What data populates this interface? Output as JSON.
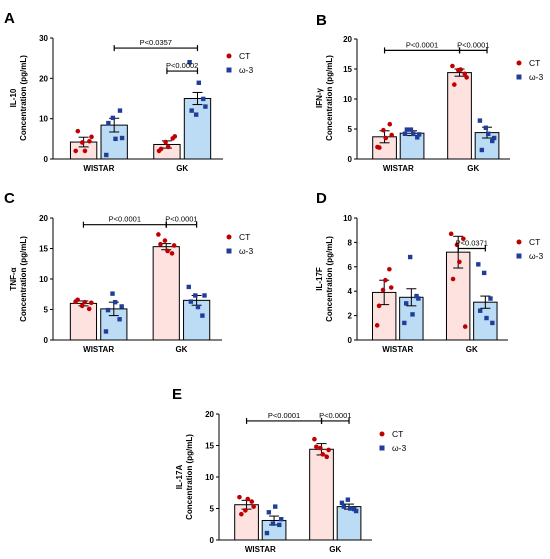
{
  "figure": {
    "categories": [
      "WISTAR",
      "GK"
    ],
    "legend": [
      {
        "label": "CT",
        "color": "#c00000",
        "bar_fill": "#fde2e0",
        "marker": "circle"
      },
      {
        "label": "ω-3",
        "color": "#1f3d99",
        "bar_fill": "#bcdcf5",
        "marker": "square"
      }
    ]
  },
  "chart_data": [
    {
      "panel": "A",
      "type": "bar",
      "ylabel": [
        "IL-10",
        "Concentration (pg/mL)"
      ],
      "ylim": [
        0,
        30
      ],
      "yticks": [
        0,
        10,
        20,
        30
      ],
      "categories": [
        "WISTAR",
        "GK"
      ],
      "series": [
        {
          "name": "CT",
          "values": [
            4.2,
            3.6
          ],
          "sem": [
            1.2,
            0.9
          ],
          "points": [
            [
              2.0,
              4.1,
              4.4,
              6.9,
              2.0,
              5.5
            ],
            [
              2.0,
              4.2,
              5.1,
              2.5,
              3.0,
              5.6
            ]
          ]
        },
        {
          "name": "ω-3",
          "values": [
            8.4,
            15.0
          ],
          "sem": [
            1.7,
            1.5
          ],
          "points": [
            [
              1.0,
              10.2,
              12.0,
              8.9,
              5.0,
              5.2
            ],
            [
              24.0,
              11.0,
              14.9,
              12.0,
              18.9,
              13.0
            ]
          ]
        }
      ],
      "annotations": [
        {
          "text": "P<0.0357",
          "from": [
            0,
            1
          ],
          "to": [
            1,
            1
          ],
          "y": 27.5
        },
        {
          "text": "P<0.0002",
          "from": [
            1,
            0
          ],
          "to": [
            1,
            1
          ],
          "y": 21.8
        }
      ]
    },
    {
      "panel": "B",
      "type": "bar",
      "ylabel": [
        "IFN-γ",
        "Concentration (pg/mL)"
      ],
      "ylim": [
        0,
        20
      ],
      "yticks": [
        0,
        5,
        10,
        15,
        20
      ],
      "categories": [
        "WISTAR",
        "GK"
      ],
      "series": [
        {
          "name": "CT",
          "values": [
            3.7,
            14.4
          ],
          "sem": [
            1.0,
            0.6
          ],
          "points": [
            [
              2.0,
              4.8,
              5.8,
              1.9,
              3.5,
              4.0
            ],
            [
              15.5,
              14.8,
              14.2,
              12.4,
              14.9,
              13.6
            ]
          ]
        },
        {
          "name": "ω-3",
          "values": [
            4.3,
            4.4
          ],
          "sem": [
            0.4,
            0.9
          ],
          "points": [
            [
              4.2,
              4.9,
              3.6,
              4.9,
              4.2,
              4.1
            ],
            [
              6.4,
              5.2,
              3.0,
              1.5,
              4.2,
              3.5
            ]
          ]
        }
      ],
      "annotations": [
        {
          "text": "P<0.0001",
          "from": [
            0,
            0
          ],
          "to": [
            1,
            0
          ],
          "y": 18.1
        },
        {
          "text": "P<0.0001",
          "from": [
            1,
            0
          ],
          "to": [
            1,
            1
          ],
          "y": 18.1
        }
      ]
    },
    {
      "panel": "C",
      "type": "bar",
      "ylabel": [
        "TNF-α",
        "Concentration (pg/mL)"
      ],
      "ylim": [
        0,
        20
      ],
      "yticks": [
        0,
        5,
        10,
        15,
        20
      ],
      "categories": [
        "WISTAR",
        "GK"
      ],
      "series": [
        {
          "name": "CT",
          "values": [
            6.0,
            15.3
          ],
          "sem": [
            0.4,
            0.5
          ],
          "points": [
            [
              6.3,
              5.6,
              5.1,
              6.6,
              6.2,
              6.1
            ],
            [
              17.3,
              16.3,
              14.2,
              15.7,
              14.6,
              15.5
            ]
          ]
        },
        {
          "name": "ω-3",
          "values": [
            5.1,
            6.5
          ],
          "sem": [
            1.1,
            0.8
          ],
          "points": [
            [
              1.4,
              7.6,
              3.4,
              4.9,
              6.2,
              5.5
            ],
            [
              8.7,
              7.3,
              4.0,
              6.3,
              5.4,
              7.3
            ]
          ]
        }
      ],
      "annotations": [
        {
          "text": "P<0.0001",
          "from": [
            0,
            0
          ],
          "to": [
            1,
            0
          ],
          "y": 18.9
        },
        {
          "text": "P<0.0001",
          "from": [
            1,
            0
          ],
          "to": [
            1,
            1
          ],
          "y": 18.9
        }
      ]
    },
    {
      "panel": "D",
      "type": "bar",
      "ylabel": [
        "IL-17F",
        "Concentration (pg/mL)"
      ],
      "ylim": [
        0,
        10
      ],
      "yticks": [
        0,
        2,
        4,
        6,
        8,
        10
      ],
      "categories": [
        "WISTAR",
        "GK"
      ],
      "series": [
        {
          "name": "CT",
          "values": [
            3.9,
            7.2
          ],
          "sem": [
            1.0,
            1.3
          ],
          "points": [
            [
              1.2,
              4.1,
              5.8,
              2.8,
              4.9,
              4.3
            ],
            [
              8.7,
              7.8,
              8.3,
              5.0,
              6.4,
              1.1
            ]
          ]
        },
        {
          "name": "ω-3",
          "values": [
            3.5,
            3.1
          ],
          "sem": [
            0.7,
            0.5
          ],
          "points": [
            [
              1.4,
              6.8,
              3.6,
              3.0,
              2.1,
              3.4
            ],
            [
              6.2,
              5.5,
              3.4,
              2.4,
              1.8,
              1.4
            ]
          ]
        }
      ],
      "annotations": [
        {
          "text": "P<0.0371",
          "from": [
            1,
            0
          ],
          "to": [
            1,
            1
          ],
          "y": 7.5
        }
      ]
    },
    {
      "panel": "E",
      "type": "bar",
      "ylabel": [
        "IL-17A",
        "Concentration (pg/mL)"
      ],
      "ylim": [
        0,
        20
      ],
      "yticks": [
        0,
        5,
        10,
        15,
        20
      ],
      "categories": [
        "WISTAR",
        "GK"
      ],
      "series": [
        {
          "name": "CT",
          "values": [
            5.6,
            14.4
          ],
          "sem": [
            0.7,
            0.9
          ],
          "points": [
            [
              6.8,
              4.7,
              6.1,
              4.1,
              6.5,
              5.3
            ],
            [
              16.0,
              14.6,
              13.2,
              14.8,
              13.6,
              14.3
            ]
          ]
        },
        {
          "name": "ω-3",
          "values": [
            3.1,
            5.3
          ],
          "sem": [
            0.7,
            0.4
          ],
          "points": [
            [
              1.1,
              2.6,
              2.4,
              4.4,
              5.3,
              3.3
            ],
            [
              5.9,
              6.4,
              4.9,
              5.3,
              5.0,
              4.6
            ]
          ]
        }
      ],
      "annotations": [
        {
          "text": "P<0.0001",
          "from": [
            0,
            0
          ],
          "to": [
            1,
            0
          ],
          "y": 18.9
        },
        {
          "text": "P<0.0001",
          "from": [
            1,
            0
          ],
          "to": [
            1,
            1
          ],
          "y": 18.9
        }
      ]
    }
  ]
}
